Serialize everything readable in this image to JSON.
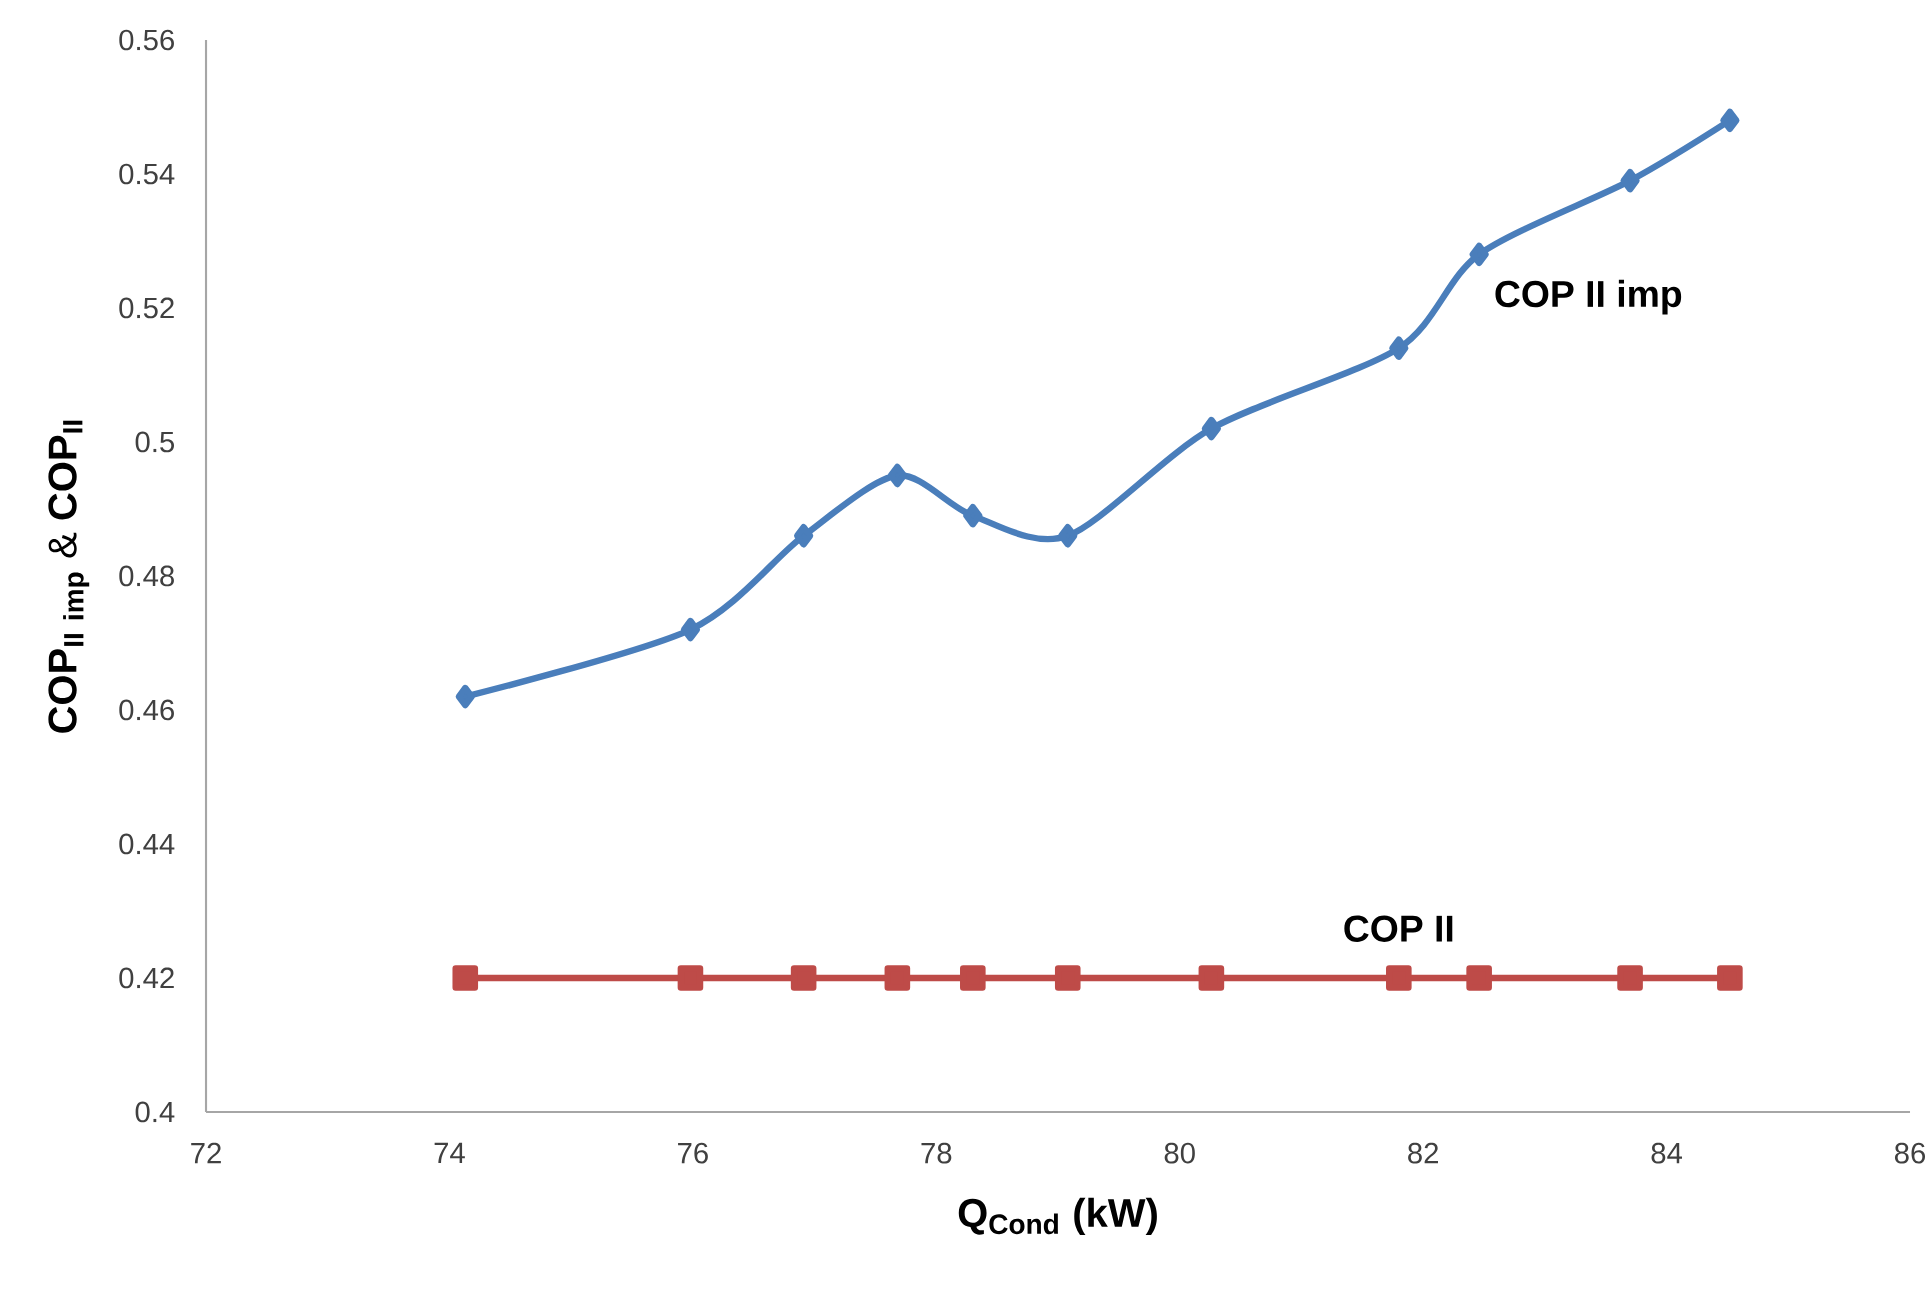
{
  "chart_data": {
    "type": "line",
    "xlabel": "Q$_{Cond}$ (kW)",
    "ylabel": "\\mathbf{COP_{II\\ imp}\\ \\&\\ COP_{II}}",
    "x": [
      74.13,
      75.98,
      76.91,
      77.68,
      78.3,
      79.08,
      80.26,
      81.8,
      82.46,
      83.7,
      84.52
    ],
    "series": [
      {
        "name": "COP II imp",
        "color": "#4a7ebb",
        "marker": "diamond",
        "values": [
          0.462,
          0.472,
          0.486,
          0.495,
          0.489,
          0.486,
          0.502,
          0.514,
          0.528,
          0.539,
          0.548
        ]
      },
      {
        "name": "COP II",
        "color": "#be4b48",
        "marker": "square",
        "values": [
          0.42,
          0.42,
          0.42,
          0.42,
          0.42,
          0.42,
          0.42,
          0.42,
          0.42,
          0.42,
          0.42
        ]
      }
    ],
    "xlim": [
      72,
      86
    ],
    "xticks": [
      72,
      74,
      76,
      78,
      80,
      82,
      84,
      86
    ],
    "ylim": [
      0.4,
      0.56
    ],
    "yticks": [
      0.4,
      0.42,
      0.44,
      0.46,
      0.48,
      0.5,
      0.52,
      0.54,
      0.56
    ],
    "grid": false,
    "legend": false,
    "line_style": "solid"
  }
}
